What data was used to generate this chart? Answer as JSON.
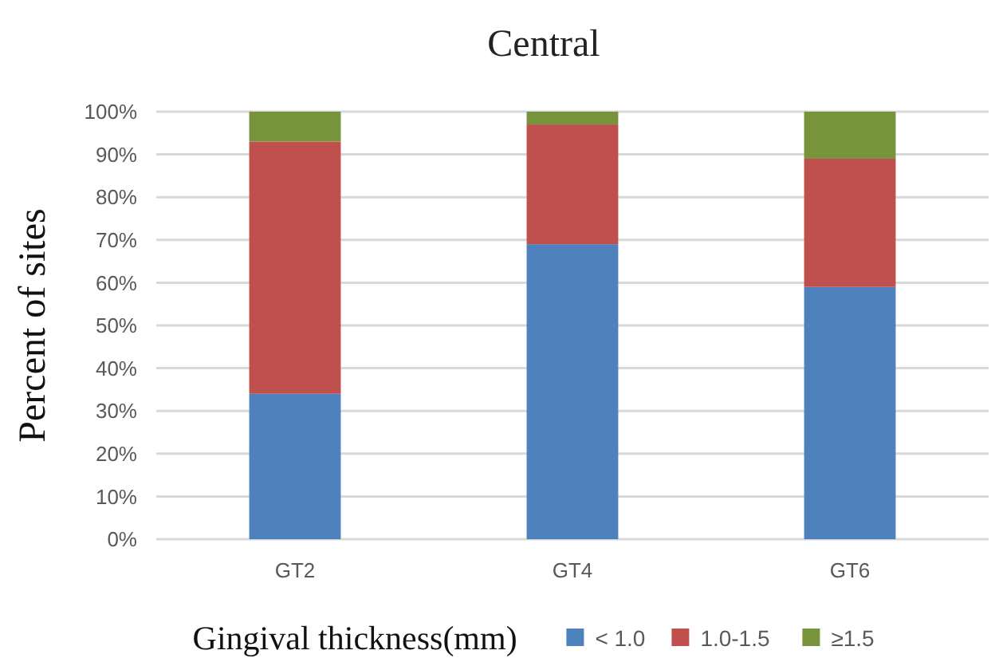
{
  "chart_data": {
    "type": "bar",
    "title": "Central",
    "xlabel": "Gingival thickness(mm)",
    "ylabel": "Percent of sites",
    "categories": [
      "GT2",
      "GT4",
      "GT6"
    ],
    "stacked": true,
    "series": [
      {
        "name": "< 1.0",
        "color": "#4f81bd",
        "values": [
          34,
          69,
          59
        ]
      },
      {
        "name": "1.0-1.5",
        "color": "#c0504d",
        "values": [
          59,
          28,
          30
        ]
      },
      {
        "name": "≥1.5",
        "color": "#77933c",
        "values": [
          7,
          3,
          11
        ]
      }
    ],
    "ylim": [
      0,
      100
    ],
    "yticks": [
      {
        "value": 0,
        "label": "0%"
      },
      {
        "value": 10,
        "label": "10%"
      },
      {
        "value": 20,
        "label": "20%"
      },
      {
        "value": 30,
        "label": "30%"
      },
      {
        "value": 40,
        "label": "40%"
      },
      {
        "value": 50,
        "label": "50%"
      },
      {
        "value": 60,
        "label": "60%"
      },
      {
        "value": 70,
        "label": "70%"
      },
      {
        "value": 80,
        "label": "80%"
      },
      {
        "value": 90,
        "label": "90%"
      },
      {
        "value": 100,
        "label": "100%"
      }
    ],
    "grid": "y",
    "legend": "bottom"
  }
}
